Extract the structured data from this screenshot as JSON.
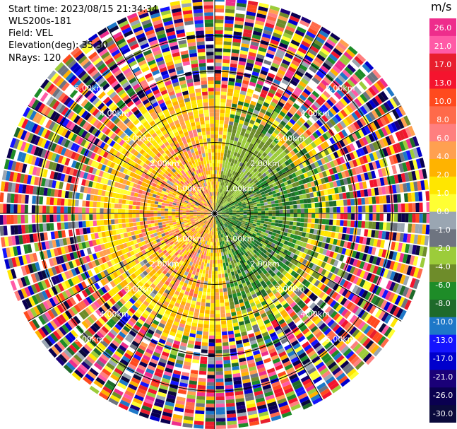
{
  "info": {
    "start_time": "Start time: 2023/08/15 21:34:34",
    "radar": "WLS200s-181",
    "field": "Field: VEL",
    "elevation": "Elevation(deg): 35.30",
    "nrays": "NRays: 120"
  },
  "colorbar": {
    "unit": "m/s",
    "ticks": [
      "26.0",
      "21.0",
      "17.0",
      "13.0",
      "10.0",
      "8.0",
      "6.0",
      "4.0",
      "2.0",
      "1.0",
      "0.0",
      "-1.0",
      "-2.0",
      "-4.0",
      "-6.0",
      "-8.0",
      "-10.0",
      "-13.0",
      "-17.0",
      "-21.0",
      "-26.0",
      "-30.0"
    ],
    "colors": [
      "#ee2d8c",
      "#ff5aa6",
      "#e81e2d",
      "#f4142e",
      "#ff4a1e",
      "#ff6a4a",
      "#ff7f7f",
      "#ffa050",
      "#ffb300",
      "#ffe600",
      "#ffff33",
      "#9aa6b2",
      "#6e7480",
      "#9ccc3a",
      "#6e8c2a",
      "#1e8c28",
      "#1e6a2a",
      "#1e78c8",
      "#1414ff",
      "#0000cc",
      "#1a0078",
      "#0a0050",
      "#0a0a3c"
    ]
  },
  "chart_data": {
    "type": "ppi",
    "field": "VEL",
    "units": "m/s",
    "nrays": 120,
    "elevation_deg": 35.3,
    "max_range_km": 6,
    "range_rings_km": [
      1,
      2,
      3,
      4,
      5
    ],
    "ring_labels": [
      "1.00km",
      "2.00km",
      "3.00km",
      "4.00km",
      "5.00km"
    ],
    "valid_range_km": 3.2,
    "pattern": "Positive (toward-red/yellow) velocities in the western half, negative (green) velocities in the eastern half near the radar; beyond about 3 km the field is dominated by noisy random colors."
  }
}
